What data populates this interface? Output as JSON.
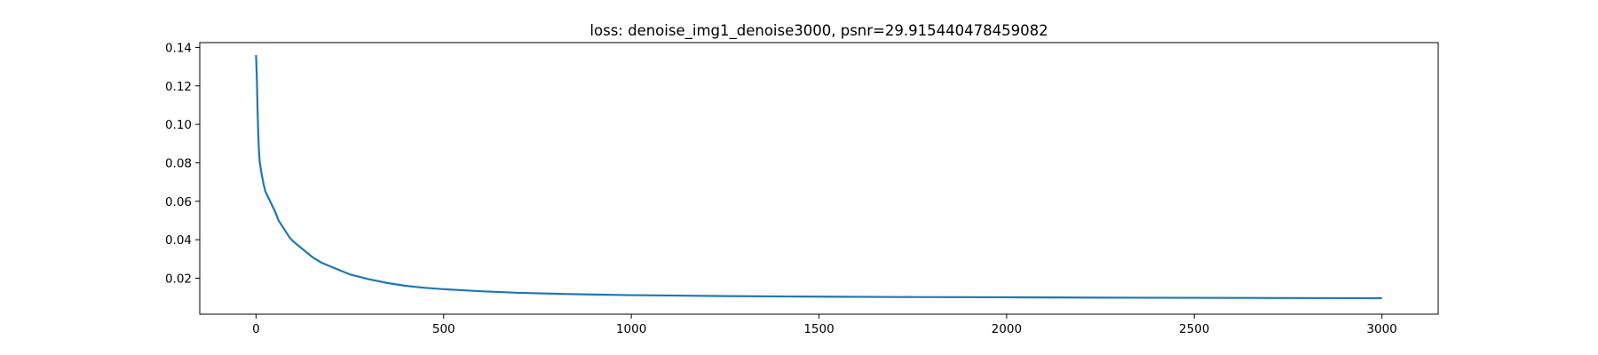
{
  "chart_data": {
    "type": "line",
    "title": "loss: denoise_img1_denoise3000, psnr=29.915440478459082",
    "xlabel": "",
    "ylabel": "",
    "xlim": [
      -150,
      3150
    ],
    "ylim": [
      0.0013,
      0.1425
    ],
    "xticks": [
      0,
      500,
      1000,
      1500,
      2000,
      2500,
      3000
    ],
    "xtick_labels": [
      "0",
      "500",
      "1000",
      "1500",
      "2000",
      "2500",
      "3000"
    ],
    "yticks": [
      0.02,
      0.04,
      0.06,
      0.08,
      0.1,
      0.12,
      0.14
    ],
    "ytick_labels": [
      "0.02",
      "0.04",
      "0.06",
      "0.08",
      "0.10",
      "0.12",
      "0.14"
    ],
    "grid": false,
    "series": [
      {
        "name": "loss",
        "color": "#1f77b4",
        "x": [
          0,
          2,
          4,
          6,
          8,
          10,
          15,
          20,
          25,
          30,
          35,
          40,
          50,
          60,
          70,
          80,
          90,
          100,
          125,
          150,
          175,
          200,
          250,
          300,
          350,
          400,
          450,
          500,
          600,
          700,
          800,
          900,
          1000,
          1250,
          1500,
          1750,
          2000,
          2250,
          2500,
          2750,
          3000
        ],
        "values": [
          0.136,
          0.125,
          0.108,
          0.094,
          0.085,
          0.08,
          0.074,
          0.069,
          0.065,
          0.063,
          0.061,
          0.059,
          0.055,
          0.05,
          0.047,
          0.044,
          0.041,
          0.039,
          0.035,
          0.031,
          0.028,
          0.026,
          0.022,
          0.0195,
          0.0175,
          0.016,
          0.015,
          0.0143,
          0.0132,
          0.0124,
          0.0119,
          0.0115,
          0.0112,
          0.0107,
          0.0104,
          0.0102,
          0.0101,
          0.0099,
          0.0098,
          0.0097,
          0.0096
        ]
      }
    ]
  }
}
